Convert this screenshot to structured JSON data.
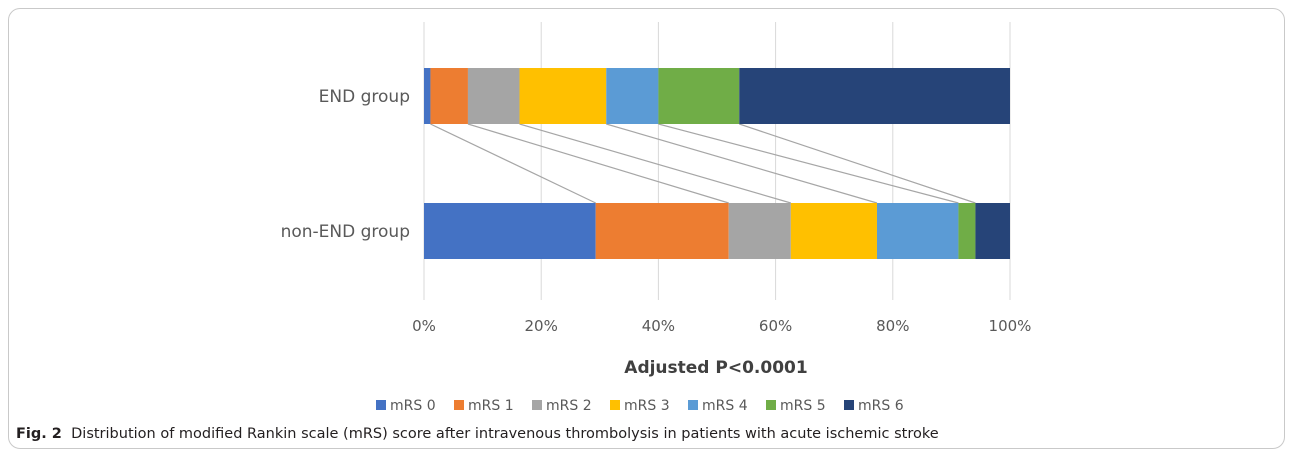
{
  "chart_data": {
    "type": "bar",
    "orientation": "horizontal",
    "stacked": "percent",
    "categories": [
      "END group",
      "non-END group"
    ],
    "series": [
      {
        "name": "mRS 0",
        "color": "#4472C4",
        "values": [
          1.1,
          29.3
        ]
      },
      {
        "name": "mRS 1",
        "color": "#ED7D31",
        "values": [
          6.4,
          22.7
        ]
      },
      {
        "name": "mRS 2",
        "color": "#A5A5A5",
        "values": [
          8.8,
          10.6
        ]
      },
      {
        "name": "mRS 3",
        "color": "#FFC000",
        "values": [
          14.8,
          14.7
        ]
      },
      {
        "name": "mRS 4",
        "color": "#5B9BD5",
        "values": [
          8.9,
          13.9
        ]
      },
      {
        "name": "mRS 5",
        "color": "#70AD47",
        "values": [
          13.8,
          2.9
        ]
      },
      {
        "name": "mRS 6",
        "color": "#264478",
        "values": [
          46.2,
          5.9
        ]
      }
    ],
    "xticks": [
      "0%",
      "20%",
      "40%",
      "60%",
      "80%",
      "100%"
    ],
    "xlim": [
      0,
      100
    ],
    "xlabel": "Adjusted P<0.0001",
    "grid": "vertical",
    "legend": "bottom",
    "connector_lines": true
  },
  "caption": {
    "label": "Fig. 2",
    "text": "Distribution of modified Rankin scale (mRS) score after intravenous thrombolysis in patients with acute ischemic stroke"
  }
}
